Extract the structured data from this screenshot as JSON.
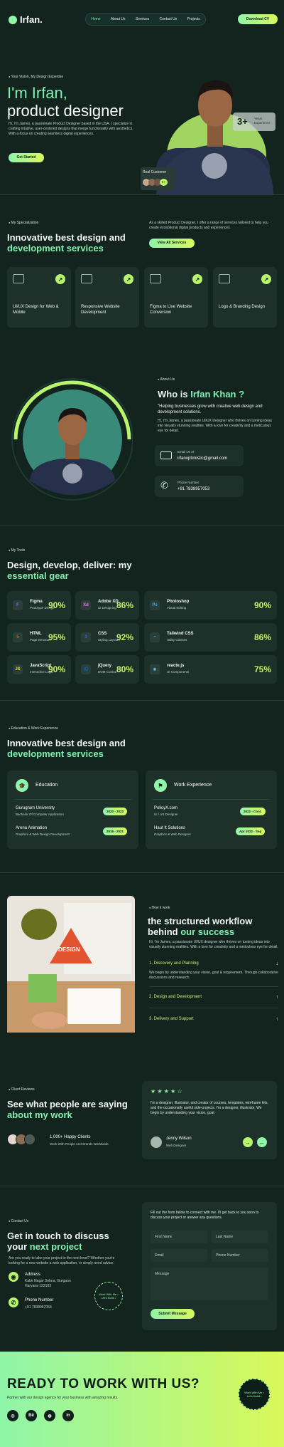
{
  "nav": {
    "logo": "Irfan.",
    "items": [
      "Home",
      "About Us",
      "Services",
      "Contact Us",
      "Projects"
    ],
    "cta": "Download CV"
  },
  "hero": {
    "kicker": "Your Vision, My Design Expertise",
    "title_1": "I'm Irfan,",
    "title_2": "product designer",
    "body": "Hi, I'm James, a passionate Product Designer based in the USA. I specialize in crafting intuitive, user-centered designs that merge functionality with aesthetics, With a focus on creating seamless digital experiences.",
    "cta": "Get Started",
    "exp_num": "3+",
    "exp_label": "Years Experience",
    "real_customer": "Real Customer",
    "avatar_count": "5+"
  },
  "specialization": {
    "kicker": "My Specialization",
    "title_1": "Innovative best design and",
    "title_2": "development services",
    "body": "As a skilled Product Designer, I offer a range of services tailored to help you create exceptional digital products and experiences.",
    "cta": "View All Services",
    "services": [
      "UI/UX Design for Web & Mobile",
      "Responsive Website Development",
      "Figma to Live Website Conversion",
      "Logo & Branding Design"
    ]
  },
  "about": {
    "kicker": "About Us",
    "title_1": "Who is ",
    "title_2": "Irfan Khan ?",
    "quote": "\"Helping businesses grow with creative web design and development solutions.",
    "body": "Hi, I'm James, a passionate UI/UX Designer who thrives on turning ideas into visually stunning realities. With a love for creativity and a meticulous eye for detail.",
    "email_label": "Email Us At",
    "email": "irfanoptimistic@gmail.com",
    "phone_label": "Phone Number",
    "phone": "+91 7838957053"
  },
  "tools": {
    "kicker": "My Tools",
    "title_1": "Design, develop, deliver: my",
    "title_2": "essential gear",
    "items": [
      {
        "name": "Figma",
        "desc": "Prototype Design",
        "pct": "90%",
        "icon": "F",
        "color": "#a259ff"
      },
      {
        "name": "Adobe XD",
        "desc": "UI Designing",
        "pct": "86%",
        "icon": "Xd",
        "color": "#ff61f6"
      },
      {
        "name": "Photoshop",
        "desc": "Visual Editing",
        "pct": "90%",
        "icon": "Ps",
        "color": "#31a8ff"
      },
      {
        "name": "HTML",
        "desc": "Page Structure",
        "pct": "95%",
        "icon": "5",
        "color": "#e44d26"
      },
      {
        "name": "CSS",
        "desc": "Styling Layouts",
        "pct": "92%",
        "icon": "3",
        "color": "#2965f1"
      },
      {
        "name": "Tailwind CSS",
        "desc": "Utility Classes",
        "pct": "86%",
        "icon": "~",
        "color": "#38bdf8"
      },
      {
        "name": "JavaScript",
        "desc": "Interactive Logic",
        "pct": "90%",
        "icon": "JS",
        "color": "#f7df1e"
      },
      {
        "name": "jQuery",
        "desc": "DOM Control",
        "pct": "80%",
        "icon": "jQ",
        "color": "#0769ad"
      },
      {
        "name": "reacte.js",
        "desc": "UI Components",
        "pct": "75%",
        "icon": "⚛",
        "color": "#61dafb"
      }
    ]
  },
  "education": {
    "kicker": "Education & Work Experience",
    "title_1": "Innovative best design and",
    "title_2": "development services",
    "edu_title": "Education",
    "edu": [
      {
        "name": "Gurugram University",
        "desc": "Bachelor Of Computer Application",
        "date": "2020 - 2023"
      },
      {
        "name": "Arena Animation",
        "desc": "Graphics & Web Design Development",
        "date": "2019 - 2021"
      }
    ],
    "work_title": "Work Experience",
    "work": [
      {
        "name": "PolicyX.com",
        "desc": "UI / UX Designer",
        "date": "2022 - Cont."
      },
      {
        "name": "Haut It Solutions",
        "desc": "Graphics & Web Designer",
        "date": "Apr 2022 - Sep"
      }
    ]
  },
  "workflow": {
    "kicker": "How it work",
    "title_1": "the structured workflow",
    "title_2a": "behind ",
    "title_2b": "our success",
    "body": "Hi, I'm James, a passionate UI/UX designer who thrives on turning ideas into visually stunning realities. With a love for creativity and a meticulous eye for detail.",
    "steps": [
      "1. Discovery and Planning",
      "2. Design and Development",
      "3. Delivery and Support"
    ],
    "step1_body": "We begin by understanding your vision, goal & requirement. Through collaborative discussions and research.",
    "image_word": "DESIGN"
  },
  "reviews": {
    "kicker": "Client Reviews",
    "title_1": "See what people are saying",
    "title_2": "about my work",
    "clients_count": "1,000+ Happy Clients",
    "clients_desc": "Work With People And Brands Worldwide.",
    "stars": "★ ★ ★ ★ ☆",
    "review": "I'm a designer, illustrator, and creator of courses, templates, wireframe kits, and the occasionally useful side-projects. I'm a designer, illustrator, We begin by understanding your vision, goal.",
    "reviewer": "Jenny Wilson",
    "reviewer_role": "Web Designer"
  },
  "contact": {
    "kicker": "Contact Us",
    "title_1": "Get in touch to discuss",
    "title_2a": "your ",
    "title_2b": "next project",
    "body": "Are you ready to take your project to the next level? Whether you're looking for a new website a web application, or simply need advice.",
    "address_label": "Address",
    "address": "Kabir Nagar Sohna, Gurgaon Haryana 122103",
    "phone_label": "Phone Number",
    "phone": "+91 7838957053",
    "form_intro": "Fill out the form below to connect with me. I'll get back to you soon to discuss your project or answer any questions.",
    "first_name": "First Name",
    "last_name": "Last Name",
    "email": "Email",
    "phone_field": "Phone Number",
    "message": "Message",
    "submit": "Submit Message",
    "badge_text": "Work With Me • Let's Build •"
  },
  "footer": {
    "title": "READY TO WORK WITH US?",
    "body": "Partner with our design agency for your business with amazing results.",
    "socials": [
      "◎",
      "Bē",
      "◍",
      "in"
    ]
  }
}
